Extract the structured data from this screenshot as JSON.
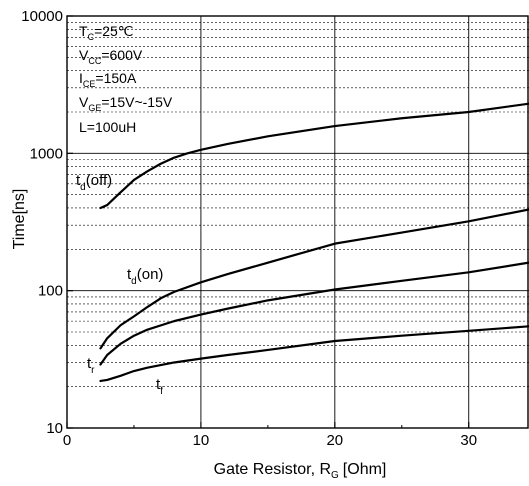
{
  "chart_data": {
    "type": "line",
    "title": "",
    "xlabel": "Gate Resistor, R",
    "xlabel_sub": "G",
    "xlabel_unit": "[Ohm]",
    "ylabel": "Time[ns]",
    "xlim": [
      0,
      34.5
    ],
    "ylim": [
      10,
      10000
    ],
    "yscale": "log",
    "xticks": [
      0,
      10,
      20,
      30
    ],
    "yticks": [
      10,
      100,
      1000,
      10000
    ],
    "xtick_labels": [
      "0",
      "10",
      "20",
      "30"
    ],
    "ytick_labels": [
      "10",
      "100",
      "1000",
      "10000"
    ],
    "grid": true,
    "annotations": [
      {
        "main": "T",
        "sub": "C",
        "rest": "=25℃"
      },
      {
        "main": "V",
        "sub": "CC",
        "rest": "=600V"
      },
      {
        "main": "I",
        "sub": "CE",
        "rest": "=150A"
      },
      {
        "main": "V",
        "sub": "GE",
        "rest": "=15V~-15V"
      },
      {
        "main": "L=100uH",
        "sub": "",
        "rest": ""
      }
    ],
    "series": [
      {
        "name": "td(off)",
        "label_main": "t",
        "label_sub": "d",
        "label_rest": "(off)",
        "x": [
          2.5,
          3,
          4,
          5,
          6,
          7,
          8,
          9,
          10,
          12,
          15,
          20,
          25,
          30,
          34.5
        ],
        "y": [
          400,
          420,
          520,
          640,
          740,
          840,
          930,
          1000,
          1060,
          1170,
          1330,
          1580,
          1800,
          2000,
          2300
        ]
      },
      {
        "name": "td(on)",
        "label_main": "t",
        "label_sub": "d",
        "label_rest": "(on)",
        "x": [
          2.5,
          3,
          4,
          5,
          6,
          7,
          8,
          10,
          12,
          15,
          20,
          25,
          30,
          34.5
        ],
        "y": [
          38,
          45,
          56,
          65,
          76,
          88,
          98,
          115,
          132,
          160,
          220,
          265,
          320,
          390
        ]
      },
      {
        "name": "tr",
        "label_main": "t",
        "label_sub": "r",
        "label_rest": "",
        "x": [
          2.5,
          3,
          4,
          5,
          6,
          8,
          10,
          12,
          15,
          20,
          25,
          30,
          34.5
        ],
        "y": [
          29,
          34,
          41,
          47,
          52,
          60,
          67,
          74,
          85,
          102,
          118,
          136,
          160
        ]
      },
      {
        "name": "tf",
        "label_main": "t",
        "label_sub": "f",
        "label_rest": "",
        "x": [
          2.5,
          3,
          4,
          5,
          6,
          8,
          10,
          12,
          15,
          20,
          25,
          30,
          34.5
        ],
        "y": [
          22,
          22.4,
          24,
          26,
          27.5,
          30,
          32,
          34,
          37,
          43,
          47,
          51,
          55
        ]
      }
    ]
  }
}
